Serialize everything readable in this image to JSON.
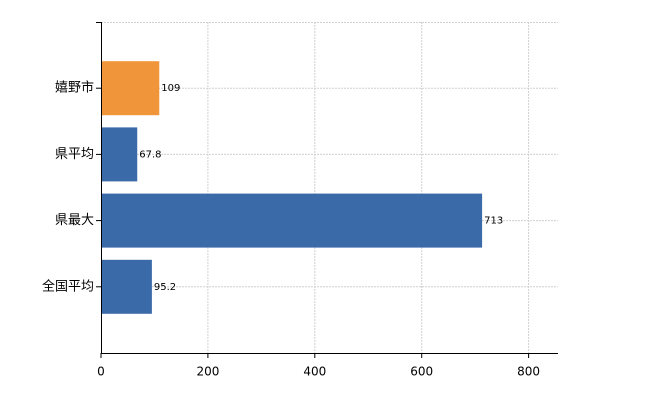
{
  "chart_data": {
    "type": "hbar",
    "categories": [
      "嬉野市",
      "県平均",
      "県最大",
      "全国平均"
    ],
    "values": [
      109,
      67.8,
      713,
      95.2
    ],
    "colors": [
      "#f0953a",
      "#3a6aa8",
      "#3a6aa8",
      "#3a6aa8"
    ],
    "xlim": [
      0,
      855
    ],
    "xticks": [
      0,
      200,
      400,
      600,
      800
    ],
    "grid": true
  }
}
